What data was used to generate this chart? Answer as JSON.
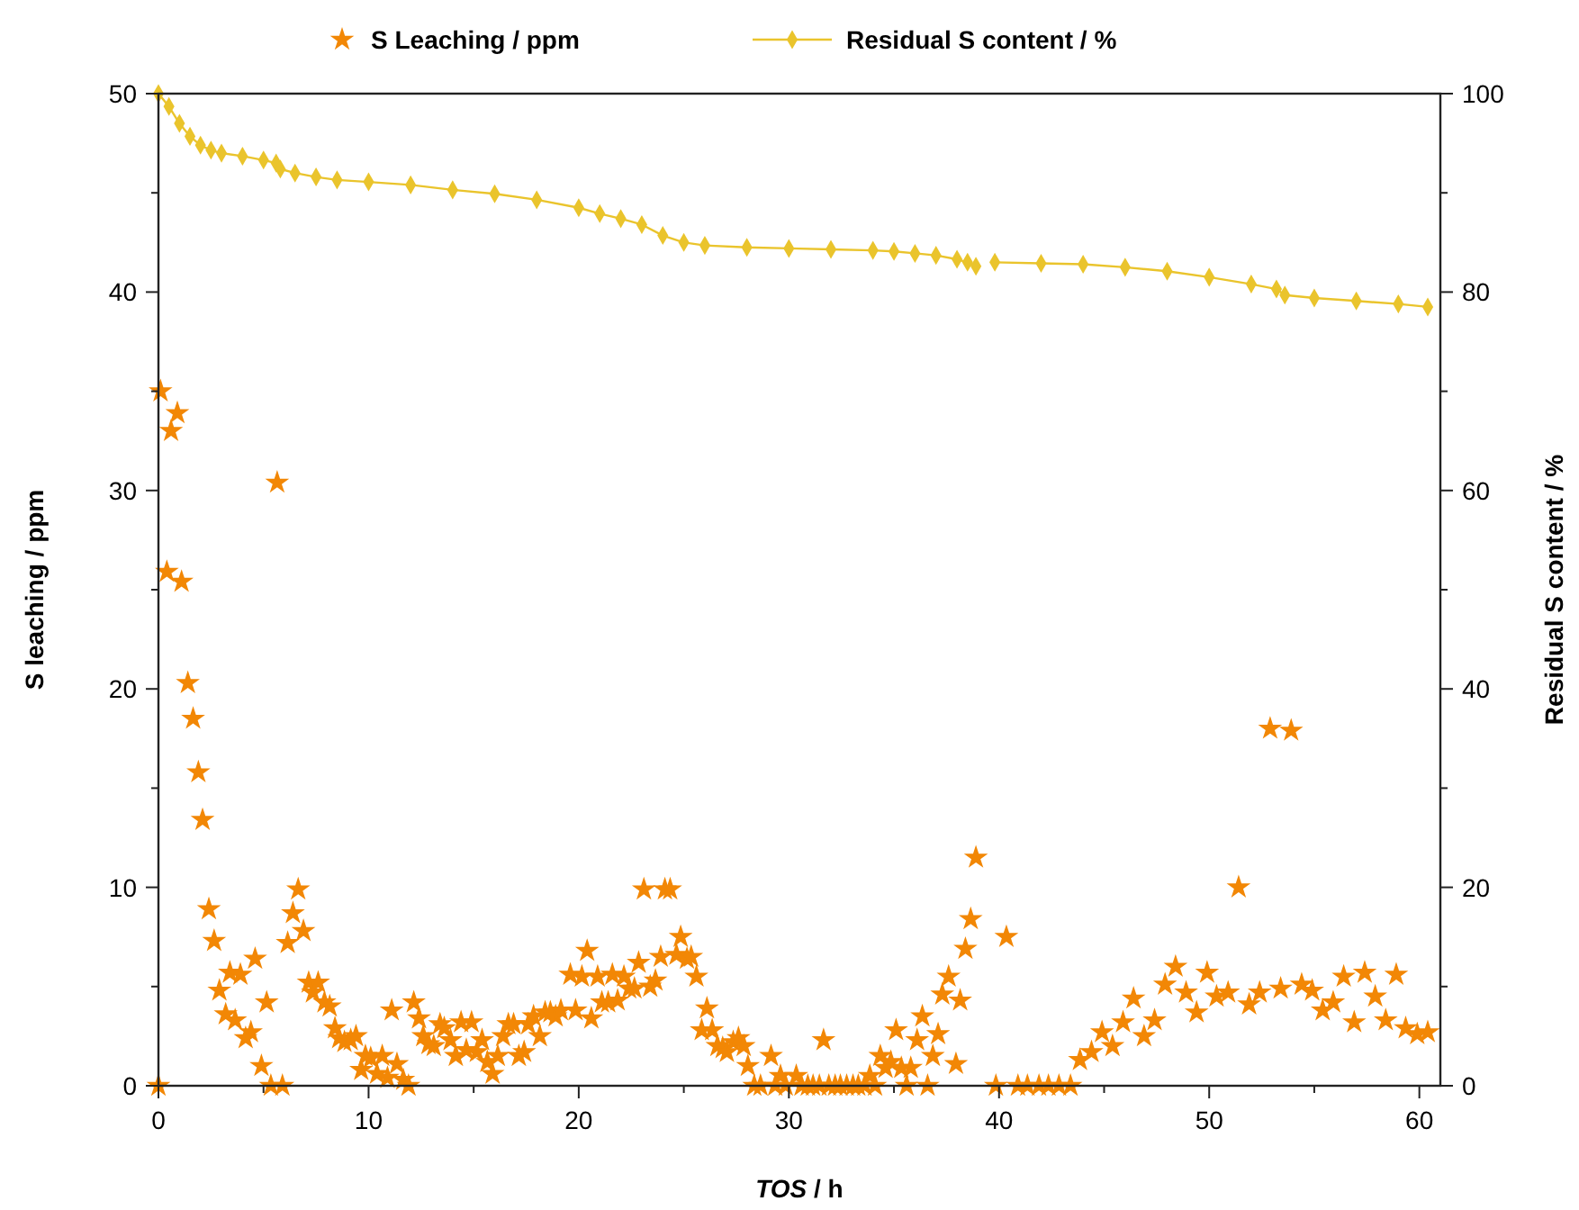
{
  "chart_data": {
    "type": "scatter",
    "xlabel": "TOS / h",
    "ylabel": "S leaching / ppm",
    "y2label": "Residual S content / %",
    "legend": "top",
    "grid": false,
    "xlim": [
      0,
      61
    ],
    "xticks": [
      0,
      {
        "value": 5,
        "label": null
      },
      10,
      {
        "value": 15,
        "label": null
      },
      20,
      {
        "value": 25,
        "label": null
      },
      30,
      {
        "value": 35,
        "label": null
      },
      40,
      {
        "value": 45,
        "label": null
      },
      50,
      {
        "value": 55,
        "label": null
      },
      60
    ],
    "ylim": [
      0,
      50
    ],
    "yticks": [
      0,
      {
        "value": 5,
        "label": null
      },
      10,
      {
        "value": 15,
        "label": null
      },
      20,
      {
        "value": 25,
        "label": null
      },
      30,
      {
        "value": 35,
        "label": null
      },
      40,
      {
        "value": 45,
        "label": null
      },
      50
    ],
    "y2lim": [
      0,
      100
    ],
    "y2ticks": [
      0,
      {
        "value": 10,
        "label": null
      },
      20,
      {
        "value": 30,
        "label": null
      },
      40,
      {
        "value": 50,
        "label": null
      },
      60,
      {
        "value": 70,
        "label": null
      },
      80,
      {
        "value": 90,
        "label": null
      },
      100
    ],
    "series": [
      {
        "name": "S Leaching / ppm",
        "marker": "star",
        "color": "#f28705",
        "x": [
          0,
          0.1,
          0.6,
          0.9,
          0.4,
          1.1,
          1.4,
          1.65,
          1.9,
          2.1,
          2.4,
          2.65,
          2.9,
          3.2,
          3.4,
          3.65,
          3.9,
          4.15,
          4.4,
          4.6,
          4.9,
          5.15,
          5.35,
          5.9,
          5.65,
          6.15,
          6.4,
          6.65,
          6.9,
          7.15,
          7.35,
          7.6,
          7.9,
          8.15,
          8.4,
          8.6,
          8.85,
          9.15,
          9.4,
          9.65,
          9.85,
          10.1,
          10.4,
          10.65,
          10.9,
          11.1,
          11.35,
          11.65,
          11.9,
          12.15,
          12.4,
          12.6,
          12.85,
          13.1,
          13.4,
          13.6,
          13.9,
          14.15,
          14.4,
          14.65,
          14.9,
          15.15,
          15.4,
          15.65,
          15.9,
          16.15,
          16.4,
          16.65,
          16.9,
          17.15,
          17.4,
          17.6,
          17.85,
          18.15,
          18.4,
          18.65,
          18.9,
          19.15,
          19.6,
          19.85,
          20.15,
          20.4,
          20.6,
          20.9,
          21.1,
          21.4,
          21.6,
          21.85,
          22.15,
          22.4,
          22.65,
          22.85,
          23.1,
          23.4,
          23.65,
          23.9,
          24.1,
          24.35,
          24.65,
          24.85,
          25.15,
          25.35,
          25.6,
          25.85,
          26.1,
          26.35,
          26.6,
          26.85,
          27.05,
          27.35,
          27.6,
          27.85,
          28.05,
          28.35,
          28.65,
          29.15,
          29.35,
          29.6,
          29.85,
          30.35,
          30.6,
          30.9,
          31.15,
          31.45,
          31.65,
          31.9,
          32.2,
          32.45,
          32.75,
          33.05,
          33.3,
          33.6,
          33.85,
          34.1,
          34.35,
          34.6,
          34.85,
          35.1,
          35.35,
          35.6,
          35.8,
          36.1,
          36.35,
          36.6,
          36.85,
          37.1,
          37.3,
          37.6,
          37.95,
          38.15,
          38.4,
          38.65,
          38.9,
          39.85,
          40.35,
          40.9,
          41.35,
          41.9,
          42.35,
          42.85,
          43.4,
          43.85,
          44.4,
          44.9,
          45.4,
          45.9,
          46.4,
          46.9,
          47.4,
          47.9,
          48.4,
          48.9,
          49.4,
          49.9,
          50.35,
          50.9,
          51.4,
          51.9,
          52.4,
          52.9,
          53.4,
          53.9,
          54.4,
          54.9,
          55.4,
          55.9,
          56.4,
          56.9,
          57.4,
          57.9,
          58.4,
          58.9,
          59.35,
          59.9,
          60.4
        ],
        "values": [
          0,
          35,
          33,
          33.9,
          25.9,
          25.4,
          20.3,
          18.5,
          15.8,
          13.4,
          8.9,
          7.3,
          4.8,
          3.6,
          5.7,
          3.3,
          5.6,
          2.4,
          2.7,
          6.4,
          1,
          4.2,
          0,
          0,
          30.4,
          7.2,
          8.7,
          9.9,
          7.8,
          5.2,
          4.7,
          5.2,
          4.2,
          4,
          2.9,
          2.4,
          2.2,
          2.3,
          2.5,
          0.8,
          1.5,
          1.4,
          0.6,
          1.5,
          0.4,
          3.8,
          1.1,
          0.3,
          0,
          4.2,
          3.4,
          2.5,
          2.1,
          2,
          3.1,
          2.9,
          2.3,
          1.5,
          3.2,
          1.8,
          3.2,
          1.7,
          2.3,
          1.2,
          0.6,
          1.5,
          2.5,
          3.1,
          3.1,
          1.5,
          1.7,
          3.1,
          3.5,
          2.5,
          3.7,
          3.7,
          3.5,
          3.8,
          5.6,
          3.8,
          5.5,
          6.8,
          3.4,
          5.5,
          4.2,
          4.2,
          5.6,
          4.3,
          5.5,
          4.9,
          4.9,
          6.2,
          9.9,
          5,
          5.3,
          6.5,
          9.9,
          9.9,
          6.6,
          7.5,
          6.4,
          6.5,
          5.5,
          2.8,
          3.9,
          2.8,
          2,
          1.9,
          1.7,
          2.2,
          2.4,
          2,
          1,
          0,
          0,
          1.5,
          0,
          0.5,
          0,
          0.5,
          0,
          0,
          0,
          0,
          2.3,
          0,
          0,
          0,
          0,
          0,
          0,
          0,
          0.5,
          0,
          1.5,
          0.9,
          1.2,
          2.8,
          0.9,
          0,
          0.9,
          2.3,
          3.5,
          0,
          1.5,
          2.6,
          4.6,
          5.5,
          1.1,
          4.3,
          6.9,
          8.4,
          11.5,
          0,
          7.5,
          0,
          0,
          0,
          0,
          0,
          0,
          1.3,
          1.7,
          2.7,
          2,
          3.2,
          4.4,
          2.5,
          3.3,
          5.1,
          6,
          4.7,
          3.7,
          5.7,
          4.5,
          4.7,
          10,
          4.1,
          4.7,
          18,
          4.9,
          17.9,
          5.1,
          4.8,
          3.8,
          4.2,
          5.5,
          3.2,
          5.7,
          4.5,
          3.3,
          5.6,
          2.9,
          2.6,
          2.7
        ]
      },
      {
        "name": "Residual S content / %",
        "type": "line",
        "axis": "y2",
        "marker": "diamond",
        "line_style": "solid",
        "color": "#eac42c",
        "x": [
          0,
          0.5,
          1,
          1.5,
          2,
          2.5,
          3,
          4,
          5,
          5.6,
          5.8,
          6.5,
          7.5,
          8.5,
          10,
          12,
          14,
          16,
          18,
          20,
          21,
          22,
          23,
          24,
          25,
          26,
          28,
          30,
          32,
          34,
          35,
          36,
          37,
          38,
          38.5,
          38.9,
          39.35,
          39.8,
          42,
          44,
          46,
          48,
          50,
          52,
          53.2,
          53.6,
          55,
          57,
          59,
          60.4
        ],
        "values": [
          100,
          98.7,
          97,
          95.7,
          94.8,
          94.3,
          94,
          93.7,
          93.3,
          93,
          92.4,
          92,
          91.6,
          91.3,
          91.1,
          90.8,
          90.3,
          89.9,
          89.3,
          88.5,
          87.9,
          87.4,
          86.8,
          85.7,
          85,
          84.7,
          84.5,
          84.4,
          84.3,
          84.2,
          84.1,
          83.9,
          83.7,
          83.3,
          83,
          82.6,
          null,
          83,
          82.9,
          82.8,
          82.5,
          82.1,
          81.5,
          80.8,
          80.3,
          79.7,
          79.4,
          79.1,
          78.8,
          78.5
        ]
      }
    ]
  }
}
